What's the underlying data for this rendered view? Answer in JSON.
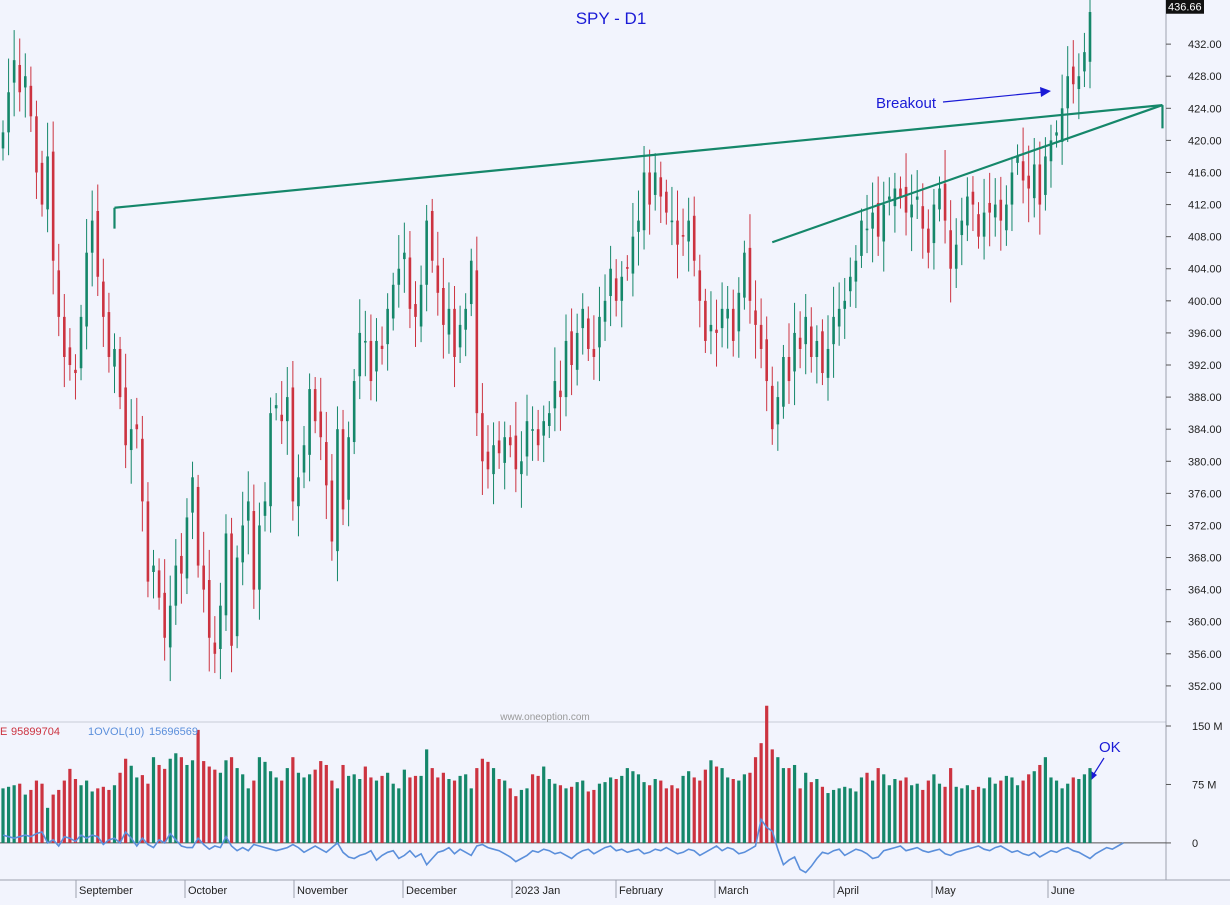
{
  "chart_data": [
    {
      "type": "candlestick",
      "title": "SPY - D1",
      "watermark": "www.oneoption.com",
      "last_price_label": "436.66",
      "ylim": [
        347.5,
        437.5
      ],
      "y_tick_labels": [
        "352.00",
        "356.00",
        "360.00",
        "364.00",
        "368.00",
        "372.00",
        "376.00",
        "380.00",
        "384.00",
        "388.00",
        "392.00",
        "396.00",
        "400.00",
        "404.00",
        "408.00",
        "412.00",
        "416.00",
        "420.00",
        "424.00",
        "428.00",
        "432.00"
      ],
      "x_tick_labels": [
        "September",
        "October",
        "November",
        "December",
        "2023 Jan",
        "February",
        "March",
        "April",
        "May",
        "June"
      ],
      "colors": {
        "up": "#15876a",
        "down": "#cc3340",
        "trendline": "#15876a",
        "annotation": "#1a1ad6",
        "title": "#1a1ad6"
      },
      "annotations": [
        {
          "text": "Breakout",
          "type": "arrow"
        }
      ],
      "trendlines": [
        {
          "name": "resistance",
          "from": {
            "bar": 0,
            "price": 411.6
          },
          "to": {
            "bar": 0,
            "price": 424.4
          }
        },
        {
          "name": "rising",
          "from": {
            "bar": 0,
            "price": 407.3
          },
          "to": {
            "bar": 0,
            "price": 424.4
          }
        }
      ],
      "closes": [
        421,
        426,
        430,
        426,
        428,
        423,
        416,
        412,
        418,
        405,
        398,
        393,
        392,
        391,
        398,
        406,
        410,
        403,
        398,
        393,
        394,
        388,
        382,
        384,
        384,
        375,
        365,
        367,
        363,
        358,
        362,
        367,
        366,
        373,
        378,
        367,
        364,
        358,
        356,
        362,
        371,
        357,
        368,
        372,
        375,
        364,
        372,
        375,
        386,
        387,
        385,
        388,
        375,
        378,
        382,
        389,
        385,
        383,
        377,
        370,
        384,
        374,
        383,
        390,
        396,
        395,
        390,
        395,
        394,
        399,
        402,
        404,
        406,
        399,
        398,
        402,
        410,
        405,
        401,
        397,
        399,
        393,
        397,
        399,
        405,
        386,
        380,
        379,
        382,
        381,
        383,
        382,
        379,
        380,
        385,
        384,
        382,
        385,
        386,
        390,
        388,
        395,
        392,
        396,
        399,
        394,
        393,
        398,
        400,
        404,
        400,
        403,
        404,
        408,
        410,
        416,
        412,
        416,
        413,
        411,
        410,
        407,
        408,
        410,
        405,
        400,
        395,
        397,
        396,
        399,
        399,
        395,
        401,
        406,
        400,
        397,
        394,
        390,
        384,
        388,
        393,
        390,
        396,
        394,
        398,
        393,
        395,
        391,
        394,
        398,
        399,
        400,
        403,
        405,
        410,
        409,
        411,
        408,
        412,
        413,
        414,
        413,
        411,
        412,
        413,
        409,
        406,
        412,
        414,
        410,
        404,
        407,
        410,
        413,
        412,
        408,
        411,
        411,
        412,
        410,
        412,
        416,
        418,
        415,
        414,
        417,
        412,
        418,
        420,
        421,
        424,
        428,
        427,
        428,
        431,
        436
      ],
      "volume_series": [
        {
          "name": "VOLUME",
          "value_label": "95899704",
          "color": "#cc3340"
        },
        {
          "name": "1OVOL(10)",
          "value_label": "15696569",
          "color": "#5b8fdb"
        }
      ],
      "volume_axis_labels": [
        "150 M",
        "75 M",
        "0"
      ],
      "volume_ylim": [
        -45,
        150
      ],
      "volume_annotation": "OK",
      "volumes": [
        70,
        72,
        74,
        76,
        62,
        68,
        80,
        76,
        45,
        62,
        68,
        80,
        95,
        82,
        74,
        80,
        66,
        70,
        72,
        68,
        74,
        90,
        108,
        99,
        84,
        87,
        76,
        110,
        100,
        95,
        108,
        115,
        110,
        100,
        106,
        145,
        105,
        98,
        94,
        90,
        106,
        110,
        96,
        88,
        70,
        80,
        110,
        104,
        92,
        84,
        80,
        96,
        110,
        90,
        84,
        88,
        94,
        105,
        100,
        80,
        70,
        100,
        86,
        88,
        82,
        98,
        84,
        80,
        86,
        90,
        76,
        70,
        94,
        84,
        86,
        86,
        120,
        96,
        84,
        90,
        82,
        80,
        86,
        88,
        70,
        96,
        108,
        104,
        96,
        82,
        80,
        70,
        60,
        68,
        70,
        88,
        86,
        98,
        82,
        76,
        74,
        70,
        72,
        78,
        80,
        66,
        68,
        76,
        78,
        84,
        82,
        86,
        96,
        92,
        88,
        78,
        74,
        82,
        80,
        70,
        74,
        70,
        86,
        92,
        84,
        80,
        94,
        106,
        98,
        96,
        84,
        82,
        80,
        88,
        90,
        110,
        128,
        176,
        120,
        110,
        96,
        96,
        100,
        70,
        90,
        78,
        82,
        72,
        64,
        68,
        70,
        72,
        70,
        66,
        84,
        90,
        80,
        96,
        88,
        74,
        82,
        80,
        84,
        74,
        76,
        68,
        80,
        88,
        76,
        72,
        96,
        72,
        70,
        74,
        68,
        72,
        70,
        84,
        76,
        80,
        86,
        84,
        74,
        80,
        88,
        92,
        100,
        110,
        84,
        80,
        70,
        76,
        84,
        82,
        88,
        96
      ],
      "mavol": [
        10,
        8,
        6,
        8,
        10,
        8,
        12,
        14,
        0,
        4,
        -4,
        8,
        6,
        2,
        10,
        6,
        10,
        8,
        -2,
        4,
        6,
        0,
        14,
        6,
        -4,
        6,
        -2,
        -6,
        4,
        0,
        12,
        4,
        -4,
        -6,
        -6,
        6,
        -2,
        -8,
        -4,
        -6,
        8,
        -4,
        -10,
        -6,
        -10,
        -2,
        -4,
        -6,
        -8,
        -10,
        -8,
        -6,
        -2,
        -6,
        -12,
        -8,
        -4,
        -8,
        -12,
        -6,
        0,
        -12,
        -18,
        -20,
        -16,
        -14,
        -10,
        -22,
        -16,
        -12,
        -10,
        -20,
        -16,
        -10,
        -18,
        -14,
        -28,
        -20,
        -12,
        -10,
        -6,
        -14,
        -8,
        -12,
        -16,
        -4,
        -2,
        -6,
        -8,
        -10,
        -14,
        -18,
        -24,
        -20,
        -16,
        -10,
        -12,
        -8,
        -10,
        -14,
        -12,
        -16,
        -20,
        -14,
        -10,
        -8,
        -14,
        -10,
        -6,
        -4,
        -10,
        -8,
        -12,
        -10,
        -8,
        -14,
        -12,
        -8,
        -10,
        -6,
        -10,
        -14,
        -12,
        -8,
        -10,
        -16,
        -12,
        -8,
        -4,
        -10,
        -6,
        -8,
        -14,
        -12,
        -8,
        -4,
        30,
        20,
        15,
        -8,
        -28,
        -22,
        -18,
        -34,
        -38,
        -30,
        -20,
        -12,
        -14,
        -10,
        -8,
        -16,
        -12,
        -8,
        -10,
        -14,
        -20,
        -18,
        -10,
        -8,
        -6,
        -4,
        -10,
        -8,
        -6,
        -10,
        -12,
        -10,
        -8,
        -14,
        -16,
        -12,
        -10,
        -8,
        -6,
        -4,
        -8,
        -10,
        -6,
        -4,
        -8,
        -12,
        -10,
        -14,
        -16,
        -12,
        -18,
        -14,
        -10,
        -12,
        -8,
        -6,
        -10,
        -12,
        -16,
        -20,
        -14,
        -10,
        -6,
        -8,
        -4,
        0
      ]
    }
  ]
}
